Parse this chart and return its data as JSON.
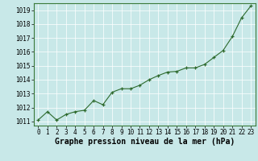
{
  "x": [
    0,
    1,
    2,
    3,
    4,
    5,
    6,
    7,
    8,
    9,
    10,
    11,
    12,
    13,
    14,
    15,
    16,
    17,
    18,
    19,
    20,
    21,
    22,
    23
  ],
  "y": [
    1011.1,
    1011.7,
    1011.1,
    1011.5,
    1011.7,
    1011.8,
    1012.5,
    1012.2,
    1013.1,
    1013.35,
    1013.35,
    1013.6,
    1014.0,
    1014.3,
    1014.55,
    1014.6,
    1014.85,
    1014.85,
    1015.1,
    1015.6,
    1016.1,
    1017.1,
    1018.45,
    1019.3
  ],
  "line_color": "#2d6a2d",
  "marker_color": "#2d6a2d",
  "bg_color": "#c8e8e8",
  "grid_color": "#ffffff",
  "xlabel": "Graphe pression niveau de la mer (hPa)",
  "ylim": [
    1010.7,
    1019.5
  ],
  "yticks": [
    1011,
    1012,
    1013,
    1014,
    1015,
    1016,
    1017,
    1018,
    1019
  ],
  "xticks": [
    0,
    1,
    2,
    3,
    4,
    5,
    6,
    7,
    8,
    9,
    10,
    11,
    12,
    13,
    14,
    15,
    16,
    17,
    18,
    19,
    20,
    21,
    22,
    23
  ],
  "tick_fontsize": 5.5,
  "label_fontsize": 7.0
}
